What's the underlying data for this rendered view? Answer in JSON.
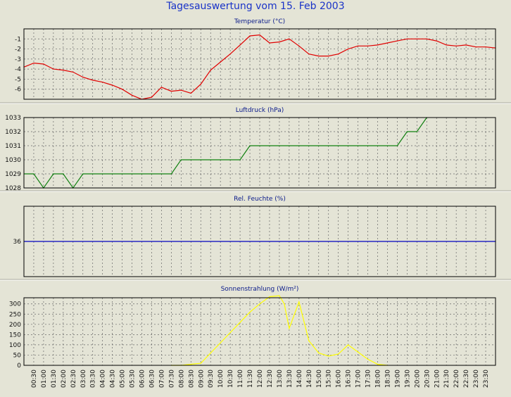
{
  "title": "Tagesauswertung vom 15. Feb 2003",
  "x_labels": [
    "00:30",
    "01:00",
    "01:30",
    "02:00",
    "02:30",
    "03:00",
    "03:30",
    "04:00",
    "04:30",
    "05:00",
    "05:30",
    "06:00",
    "06:30",
    "07:00",
    "07:30",
    "08:00",
    "08:30",
    "09:00",
    "09:30",
    "10:00",
    "10:30",
    "11:00",
    "11:30",
    "12:00",
    "12:30",
    "13:00",
    "13:30",
    "14:00",
    "14:30",
    "15:00",
    "15:30",
    "16:00",
    "16:30",
    "17:00",
    "17:30",
    "18:00",
    "18:30",
    "19:00",
    "19:30",
    "20:00",
    "20:30",
    "21:00",
    "21:30",
    "22:00",
    "22:30",
    "23:00",
    "23:30"
  ],
  "colors": {
    "background": "#e4e4d6",
    "title": "#1a33c8",
    "temperature": "#e00000",
    "pressure": "#108010",
    "humidity": "#0000c0",
    "radiation": "#ffff00"
  },
  "chart_data": [
    {
      "type": "line",
      "title": "Temperatur (°C)",
      "ylim": [
        -7,
        0
      ],
      "yticks": [
        -1,
        -2,
        -3,
        -4,
        -5,
        -6
      ],
      "x": [
        "00:00",
        "00:30",
        "01:00",
        "01:30",
        "02:00",
        "02:30",
        "03:00",
        "03:30",
        "04:00",
        "04:30",
        "05:00",
        "05:30",
        "06:00",
        "06:30",
        "07:00",
        "07:30",
        "08:00",
        "08:30",
        "09:00",
        "09:30",
        "10:00",
        "10:30",
        "11:00",
        "11:30",
        "12:00",
        "12:30",
        "13:00",
        "13:30",
        "14:00",
        "14:30",
        "15:00",
        "15:30",
        "16:00",
        "16:30",
        "17:00",
        "17:30",
        "18:00",
        "18:30",
        "19:00",
        "19:30",
        "20:00",
        "20:30",
        "21:00",
        "21:30",
        "22:00",
        "22:30",
        "23:00",
        "23:30",
        "24:00"
      ],
      "series": [
        {
          "color": "#e00000",
          "values": [
            -3.8,
            -3.4,
            -3.5,
            -4.0,
            -4.1,
            -4.3,
            -4.8,
            -5.1,
            -5.3,
            -5.6,
            -6.0,
            -6.6,
            -7.0,
            -6.8,
            -5.8,
            -6.2,
            -6.1,
            -6.4,
            -5.5,
            -4.1,
            -3.3,
            -2.5,
            -1.6,
            -0.7,
            -0.6,
            -1.4,
            -1.3,
            -1.0,
            -1.7,
            -2.5,
            -2.7,
            -2.7,
            -2.5,
            -2.0,
            -1.7,
            -1.7,
            -1.6,
            -1.4,
            -1.2,
            -1.0,
            -1.0,
            -1.0,
            -1.2,
            -1.6,
            -1.7,
            -1.6,
            -1.8,
            -1.8,
            -1.9
          ]
        }
      ]
    },
    {
      "type": "line",
      "title": "Luftdruck (hPa)",
      "ylim": [
        1028,
        1033
      ],
      "yticks": [
        1033,
        1032,
        1031,
        1030,
        1029,
        1028
      ],
      "x": [
        "00:00",
        "00:30",
        "01:00",
        "01:30",
        "02:00",
        "02:30",
        "03:00",
        "03:30",
        "04:00",
        "04:30",
        "05:00",
        "05:30",
        "06:00",
        "06:30",
        "07:00",
        "07:30",
        "08:00",
        "08:30",
        "09:00",
        "09:30",
        "10:00",
        "10:30",
        "11:00",
        "11:30",
        "12:00",
        "12:30",
        "13:00",
        "13:30",
        "14:00",
        "14:30",
        "15:00",
        "15:30",
        "16:00",
        "16:30",
        "17:00",
        "17:30",
        "18:00",
        "18:30",
        "19:00",
        "19:30",
        "20:00",
        "20:30"
      ],
      "series": [
        {
          "color": "#108010",
          "values": [
            1029,
            1029,
            1028,
            1029,
            1029,
            1028,
            1029,
            1029,
            1029,
            1029,
            1029,
            1029,
            1029,
            1029,
            1029,
            1029,
            1030,
            1030,
            1030,
            1030,
            1030,
            1030,
            1030,
            1031,
            1031,
            1031,
            1031,
            1031,
            1031,
            1031,
            1031,
            1031,
            1031,
            1031,
            1031,
            1031,
            1031,
            1031,
            1031,
            1032,
            1032,
            1033
          ]
        }
      ]
    },
    {
      "type": "line",
      "title": "Rel. Feuchte (%)",
      "ylim": [
        31,
        41
      ],
      "yticks": [
        36
      ],
      "x": [
        "00:00",
        "24:00"
      ],
      "series": [
        {
          "color": "#0000c0",
          "values": [
            36,
            36
          ]
        }
      ]
    },
    {
      "type": "line",
      "title": "Sonnenstrahlung (W/m²)",
      "ylim": [
        0,
        330
      ],
      "yticks": [
        300,
        250,
        200,
        150,
        100,
        50,
        0
      ],
      "x": [
        "07:30",
        "08:00",
        "08:30",
        "09:00",
        "09:30",
        "10:00",
        "10:30",
        "11:00",
        "11:30",
        "12:00",
        "12:30",
        "13:00",
        "13:15",
        "13:30",
        "14:00",
        "14:30",
        "15:00",
        "15:30",
        "16:00",
        "16:30",
        "17:00",
        "17:30",
        "18:00",
        "18:30"
      ],
      "series": [
        {
          "color": "#ffff00",
          "values": [
            0,
            0,
            5,
            10,
            60,
            110,
            160,
            210,
            260,
            300,
            335,
            340,
            300,
            180,
            310,
            120,
            60,
            45,
            55,
            100,
            65,
            30,
            5,
            0
          ]
        }
      ]
    }
  ]
}
